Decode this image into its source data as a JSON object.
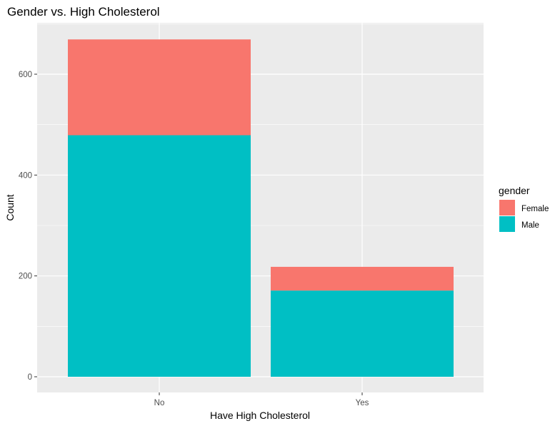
{
  "chart_data": {
    "type": "bar",
    "stacked": true,
    "title": "Gender vs. High Cholesterol",
    "xlabel": "Have High Cholesterol",
    "ylabel": "Count",
    "categories": [
      "No",
      "Yes"
    ],
    "series": [
      {
        "name": "Male",
        "values": [
          479,
          171
        ],
        "color": "#00BFC4"
      },
      {
        "name": "Female",
        "values": [
          190,
          47
        ],
        "color": "#F8766D"
      }
    ],
    "ylim": [
      0,
      720
    ],
    "yticks": [
      0,
      200,
      400,
      600
    ],
    "grid": true,
    "legend": {
      "title": "gender",
      "position": "right",
      "entries": [
        {
          "label": "Female",
          "color": "#F8766D"
        },
        {
          "label": "Male",
          "color": "#00BFC4"
        }
      ]
    },
    "panel_background": "#EBEBEB"
  }
}
